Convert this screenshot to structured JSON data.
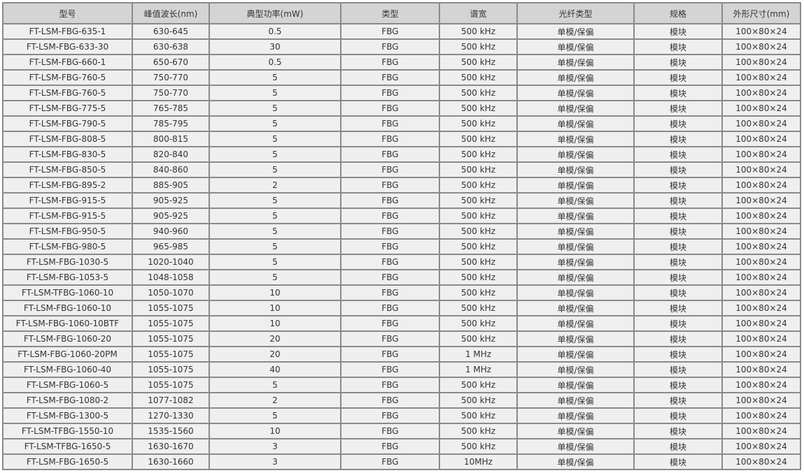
{
  "table": {
    "headers": [
      "型号",
      "峰值波长(nm)",
      "典型功率(mW)",
      "类型",
      "谱宽",
      "光纤类型",
      "规格",
      "外形尺寸(mm)"
    ],
    "rows": [
      [
        "FT-LSM-FBG-635-1",
        "630-645",
        "0.5",
        "FBG",
        "500 kHz",
        "单模/保偏",
        "模块",
        "100×80×24"
      ],
      [
        "FT-LSM-FBG-633-30",
        "630-638",
        "30",
        "FBG",
        "500 kHz",
        "单模/保偏",
        "模块",
        "100×80×24"
      ],
      [
        "FT-LSM-FBG-660-1",
        "650-670",
        "0.5",
        "FBG",
        "500 kHz",
        "单模/保偏",
        "模块",
        "100×80×24"
      ],
      [
        "FT-LSM-FBG-760-5",
        "750-770",
        "5",
        "FBG",
        "500 kHz",
        "单模/保偏",
        "模块",
        "100×80×24"
      ],
      [
        "FT-LSM-FBG-760-5",
        "750-770",
        "5",
        "FBG",
        "500 kHz",
        "单模/保偏",
        "模块",
        "100×80×24"
      ],
      [
        "FT-LSM-FBG-775-5",
        "765-785",
        "5",
        "FBG",
        "500 kHz",
        "单模/保偏",
        "模块",
        "100×80×24"
      ],
      [
        "FT-LSM-FBG-790-5",
        "785-795",
        "5",
        "FBG",
        "500 kHz",
        "单模/保偏",
        "模块",
        "100×80×24"
      ],
      [
        "FT-LSM-FBG-808-5",
        "800-815",
        "5",
        "FBG",
        "500 kHz",
        "单模/保偏",
        "模块",
        "100×80×24"
      ],
      [
        "FT-LSM-FBG-830-5",
        "820-840",
        "5",
        "FBG",
        "500 kHz",
        "单模/保偏",
        "模块",
        "100×80×24"
      ],
      [
        "FT-LSM-FBG-850-5",
        "840-860",
        "5",
        "FBG",
        "500 kHz",
        "单模/保偏",
        "模块",
        "100×80×24"
      ],
      [
        "FT-LSM-FBG-895-2",
        "885-905",
        "2",
        "FBG",
        "500 kHz",
        "单模/保偏",
        "模块",
        "100×80×24"
      ],
      [
        "FT-LSM-FBG-915-5",
        "905-925",
        "5",
        "FBG",
        "500 kHz",
        "单模/保偏",
        "模块",
        "100×80×24"
      ],
      [
        "FT-LSM-FBG-915-5",
        "905-925",
        "5",
        "FBG",
        "500 kHz",
        "单模/保偏",
        "模块",
        "100×80×24"
      ],
      [
        "FT-LSM-FBG-950-5",
        "940-960",
        "5",
        "FBG",
        "500 kHz",
        "单模/保偏",
        "模块",
        "100×80×24"
      ],
      [
        "FT-LSM-FBG-980-5",
        "965-985",
        "5",
        "FBG",
        "500 kHz",
        "单模/保偏",
        "模块",
        "100×80×24"
      ],
      [
        "FT-LSM-FBG-1030-5",
        "1020-1040",
        "5",
        "FBG",
        "500 kHz",
        "单模/保偏",
        "模块",
        "100×80×24"
      ],
      [
        "FT-LSM-FBG-1053-5",
        "1048-1058",
        "5",
        "FBG",
        "500 kHz",
        "单模/保偏",
        "模块",
        "100×80×24"
      ],
      [
        "FT-LSM-TFBG-1060-10",
        "1050-1070",
        "10",
        "FBG",
        "500 kHz",
        "单模/保偏",
        "模块",
        "100×80×24"
      ],
      [
        "FT-LSM-FBG-1060-10",
        "1055-1075",
        "10",
        "FBG",
        "500 kHz",
        "单模/保偏",
        "模块",
        "100×80×24"
      ],
      [
        "FT-LSM-FBG-1060-10BTF",
        "1055-1075",
        "10",
        "FBG",
        "500 kHz",
        "单模/保偏",
        "模块",
        "100×80×24"
      ],
      [
        "FT-LSM-FBG-1060-20",
        "1055-1075",
        "20",
        "FBG",
        "500 kHz",
        "单模/保偏",
        "模块",
        "100×80×24"
      ],
      [
        "FT-LSM-FBG-1060-20PM",
        "1055-1075",
        "20",
        "FBG",
        "1 MHz",
        "单模/保偏",
        "模块",
        "100×80×24"
      ],
      [
        "FT-LSM-FBG-1060-40",
        "1055-1075",
        "40",
        "FBG",
        "1 MHz",
        "单模/保偏",
        "模块",
        "100×80×24"
      ],
      [
        "FT-LSM-FBG-1060-5",
        "1055-1075",
        "5",
        "FBG",
        "500 kHz",
        "单模/保偏",
        "模块",
        "100×80×24"
      ],
      [
        "FT-LSM-FBG-1080-2",
        "1077-1082",
        "2",
        "FBG",
        "500 kHz",
        "单模/保偏",
        "模块",
        "100×80×24"
      ],
      [
        "FT-LSM-FBG-1300-5",
        "1270-1330",
        "5",
        "FBG",
        "500 kHz",
        "单模/保偏",
        "模块",
        "100×80×24"
      ],
      [
        "FT-LSM-TFBG-1550-10",
        "1535-1560",
        "10",
        "FBG",
        "500 kHz",
        "单模/保偏",
        "模块",
        "100×80×24"
      ],
      [
        "FT-LSM-TFBG-1650-5",
        "1630-1670",
        "3",
        "FBG",
        "500 kHz",
        "单模/保偏",
        "模块",
        "100×80×24"
      ],
      [
        "FT-LSM-FBG-1650-5",
        "1630-1660",
        "3",
        "FBG",
        "10MHz",
        "单模/保偏",
        "模块",
        "100×80×24"
      ]
    ]
  }
}
